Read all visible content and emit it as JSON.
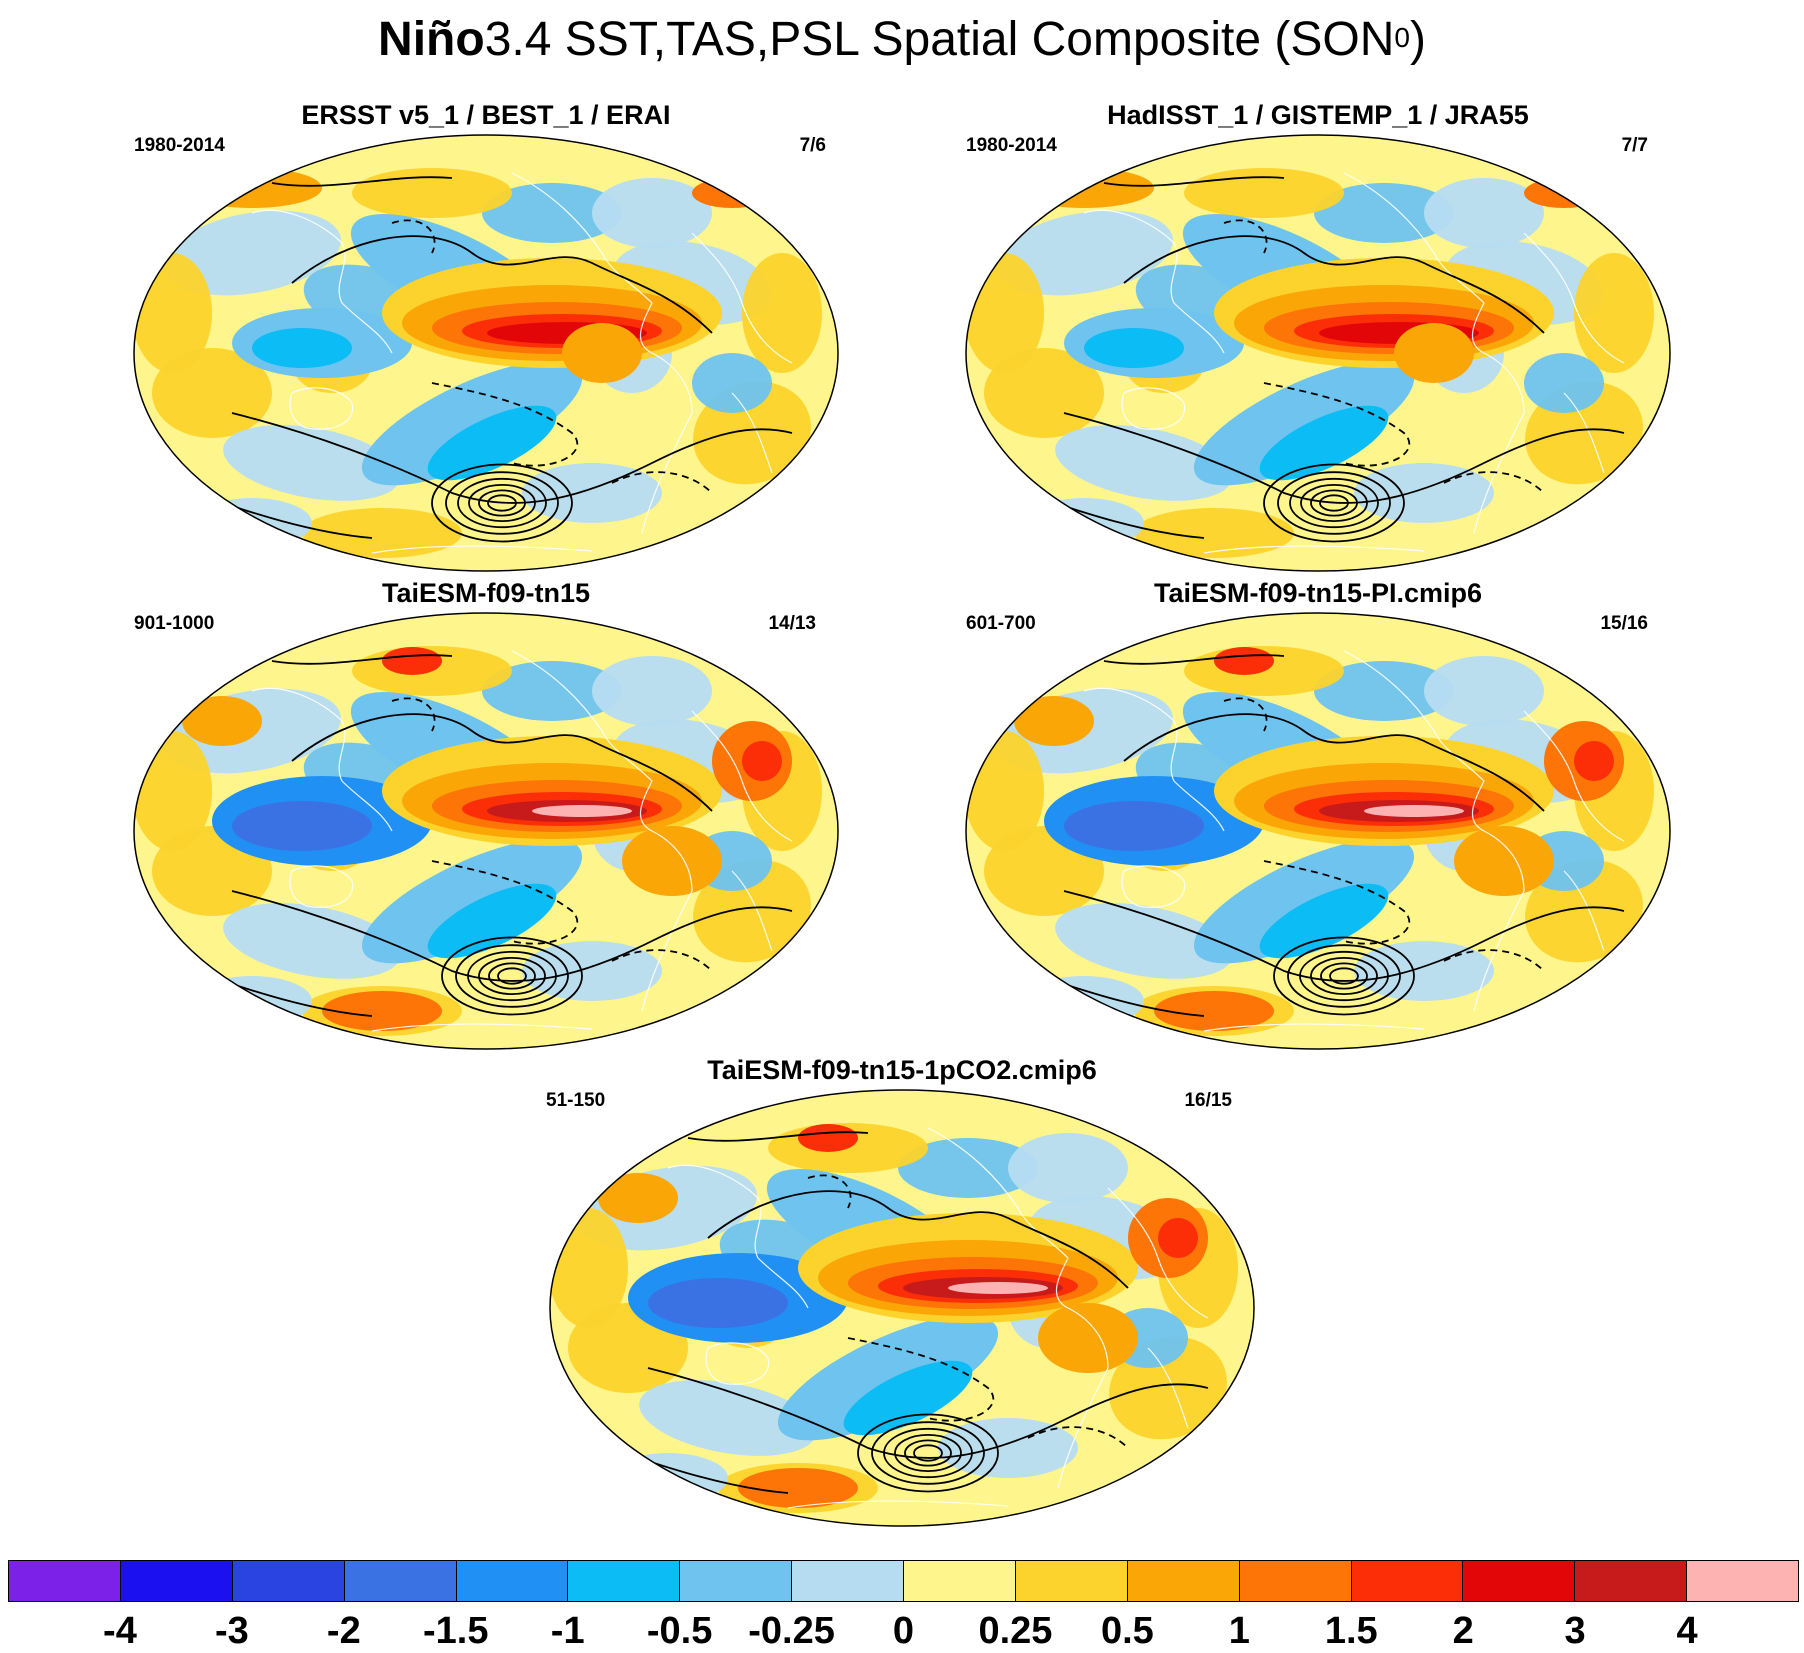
{
  "title": {
    "bold_part": "Niño",
    "rest": "3.4 SST,TAS,PSL Spatial Composite (SON",
    "sup": "0",
    "close": ")"
  },
  "panels": [
    {
      "title": "ERSST v5_1 / BEST_1 / ERAI",
      "period": "1980-2014",
      "count": "7/6"
    },
    {
      "title": "HadISST_1 / GISTEMP_1 / JRA55",
      "period": "1980-2014",
      "count": "7/7"
    },
    {
      "title": "TaiESM-f09-tn15",
      "period": "901-1000",
      "count": "14/13"
    },
    {
      "title": "TaiESM-f09-tn15-PI.cmip6",
      "period": "601-700",
      "count": "15/16"
    },
    {
      "title": "TaiESM-f09-tn15-1pCO2.cmip6",
      "period": "51-150",
      "count": "16/15"
    }
  ],
  "colorbar": {
    "colors": [
      "#7c22e8",
      "#1a10f0",
      "#2a44e2",
      "#3a72e4",
      "#2190f5",
      "#0cbcf5",
      "#6ec3ef",
      "#b6dcf2",
      "#fef58c",
      "#fcd32c",
      "#fba607",
      "#fd7407",
      "#fb2e07",
      "#e20609",
      "#c71b1b",
      "#feb3b3"
    ],
    "labels": [
      "-4",
      "-3",
      "-2",
      "-1.5",
      "-1",
      "-0.5",
      "-0.25",
      "0",
      "0.25",
      "0.5",
      "1",
      "1.5",
      "2",
      "3",
      "4"
    ]
  }
}
